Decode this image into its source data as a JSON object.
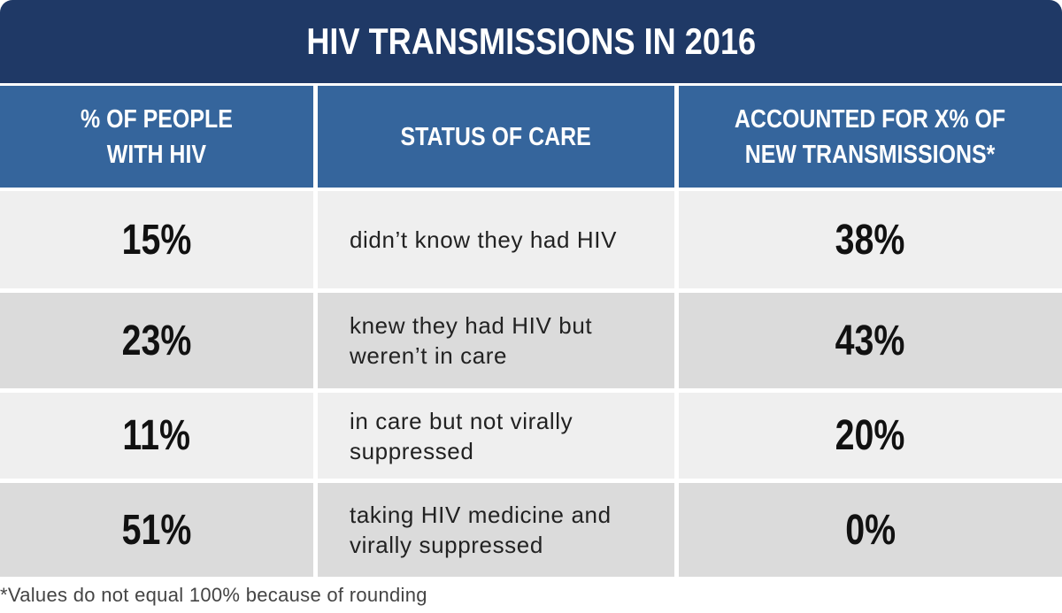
{
  "chart_data": {
    "type": "table",
    "title": "HIV TRANSMISSIONS IN 2016",
    "columns": [
      "% OF PEOPLE\nWITH HIV",
      "STATUS OF CARE",
      "ACCOUNTED FOR X% OF\nNEW TRANSMISSIONS*"
    ],
    "rows": [
      {
        "people_pct": "15%",
        "status": "didn’t know they had HIV",
        "transmissions_pct": "38%"
      },
      {
        "people_pct": "23%",
        "status": "knew they had HIV but\nweren’t in care",
        "transmissions_pct": "43%"
      },
      {
        "people_pct": "11%",
        "status": "in care but not virally\nsuppressed",
        "transmissions_pct": "20%"
      },
      {
        "people_pct": "51%",
        "status": "taking HIV medicine and\nvirally suppressed",
        "transmissions_pct": "0%"
      }
    ],
    "footnote": "*Values do not equal 100% because of rounding"
  },
  "colors": {
    "title_bg": "#1f3966",
    "header_bg": "#35659c",
    "row_light": "#efefef",
    "row_dark": "#dbdbdb"
  }
}
